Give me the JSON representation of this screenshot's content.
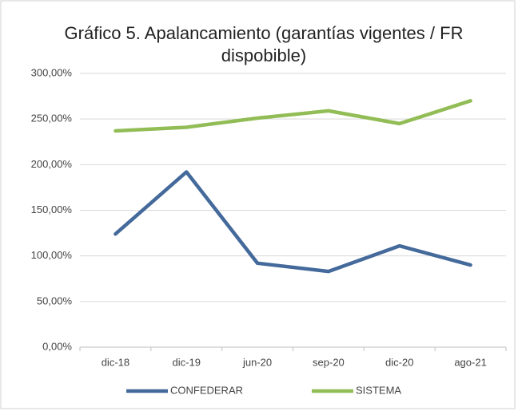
{
  "chart_data": {
    "type": "line",
    "title": "Gráfico 5. Apalancamiento (garantías vigentes / FR dispobible)",
    "categories": [
      "dic-18",
      "dic-19",
      "jun-20",
      "sep-20",
      "dic-20",
      "ago-21"
    ],
    "series": [
      {
        "name": "CONFEDERAR",
        "color": "#44699b",
        "values": [
          124,
          192,
          92,
          83,
          111,
          90
        ]
      },
      {
        "name": "SISTEMA",
        "color": "#92bd56",
        "values": [
          237,
          241,
          251,
          259,
          245,
          270
        ]
      }
    ],
    "ylim": [
      0,
      300
    ],
    "yticks": [
      {
        "value": 0,
        "label": "0,00%"
      },
      {
        "value": 50,
        "label": "50,00%"
      },
      {
        "value": 100,
        "label": "100,00%"
      },
      {
        "value": 150,
        "label": "150,00%"
      },
      {
        "value": 200,
        "label": "200,00%"
      },
      {
        "value": 250,
        "label": "250,00%"
      },
      {
        "value": 300,
        "label": "300,00%"
      }
    ],
    "grid": true,
    "legend": "bottom"
  }
}
